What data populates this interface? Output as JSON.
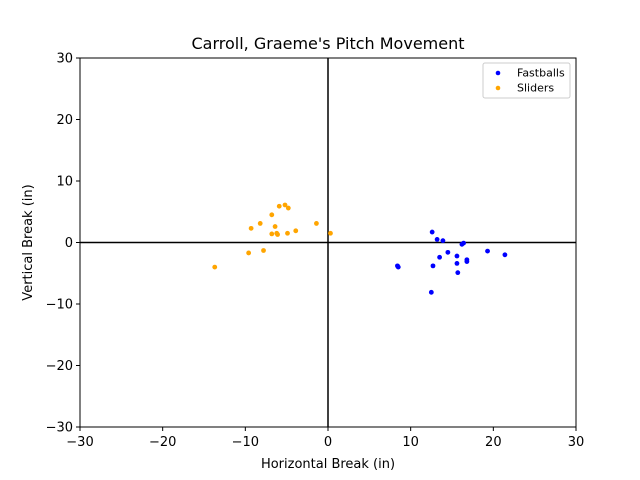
{
  "chart_data": {
    "type": "scatter",
    "title": "Carroll, Graeme's Pitch Movement",
    "xlabel": "Horizontal Break (in)",
    "ylabel": "Vertical Break (in)",
    "xlim": [
      -30,
      30
    ],
    "ylim": [
      -30,
      30
    ],
    "xticks": [
      -30,
      -20,
      -10,
      0,
      10,
      20,
      30
    ],
    "yticks": [
      -30,
      -20,
      -10,
      0,
      10,
      20,
      30
    ],
    "grid": false,
    "zero_lines": true,
    "legend_position": "top-right",
    "series": [
      {
        "name": "Fastballs",
        "color": "#0000ff",
        "points": [
          [
            12.6,
            1.7
          ],
          [
            13.2,
            0.5
          ],
          [
            13.9,
            0.3
          ],
          [
            16.4,
            -0.1
          ],
          [
            16.2,
            -0.3
          ],
          [
            19.3,
            -1.4
          ],
          [
            21.4,
            -2.0
          ],
          [
            14.5,
            -1.6
          ],
          [
            15.6,
            -2.2
          ],
          [
            13.5,
            -2.4
          ],
          [
            16.8,
            -2.8
          ],
          [
            16.8,
            -3.1
          ],
          [
            15.6,
            -3.4
          ],
          [
            12.7,
            -3.8
          ],
          [
            8.4,
            -3.8
          ],
          [
            8.5,
            -4.0
          ],
          [
            15.7,
            -4.9
          ],
          [
            12.5,
            -8.1
          ]
        ]
      },
      {
        "name": "Sliders",
        "color": "#ffa500",
        "points": [
          [
            -5.2,
            6.1
          ],
          [
            -5.9,
            5.9
          ],
          [
            -4.8,
            5.6
          ],
          [
            -6.8,
            4.5
          ],
          [
            -8.2,
            3.1
          ],
          [
            -1.4,
            3.1
          ],
          [
            -6.4,
            2.6
          ],
          [
            -9.3,
            2.3
          ],
          [
            -3.9,
            1.9
          ],
          [
            0.3,
            1.5
          ],
          [
            -4.9,
            1.5
          ],
          [
            -6.2,
            1.5
          ],
          [
            -6.8,
            1.4
          ],
          [
            -6.1,
            1.3
          ],
          [
            -7.8,
            -1.3
          ],
          [
            -9.6,
            -1.7
          ],
          [
            -13.7,
            -4.0
          ]
        ]
      }
    ]
  }
}
